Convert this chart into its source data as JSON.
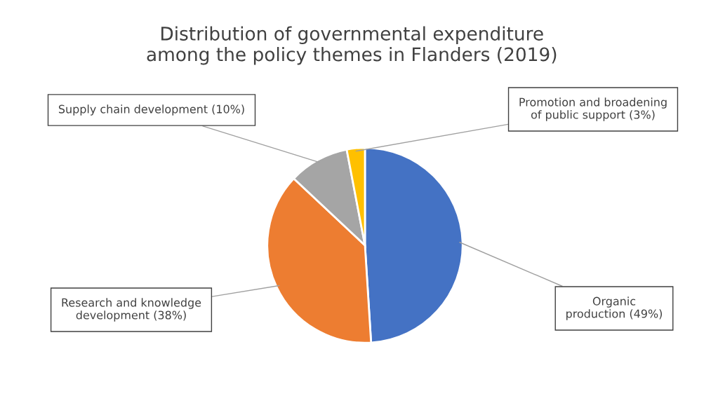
{
  "chart_data": {
    "type": "pie",
    "title": "Distribution of governmental expenditure among the policy themes in Flanders (2019)",
    "categories": [
      "Organic production (49%)",
      "Research and knowledge development (38%)",
      "Supply chain development (10%)",
      "Promotion and broadening of public support (3%)"
    ],
    "values": [
      49,
      38,
      10,
      3
    ],
    "colors": [
      "#4472c4",
      "#ed7d31",
      "#a5a5a5",
      "#ffc000"
    ]
  }
}
